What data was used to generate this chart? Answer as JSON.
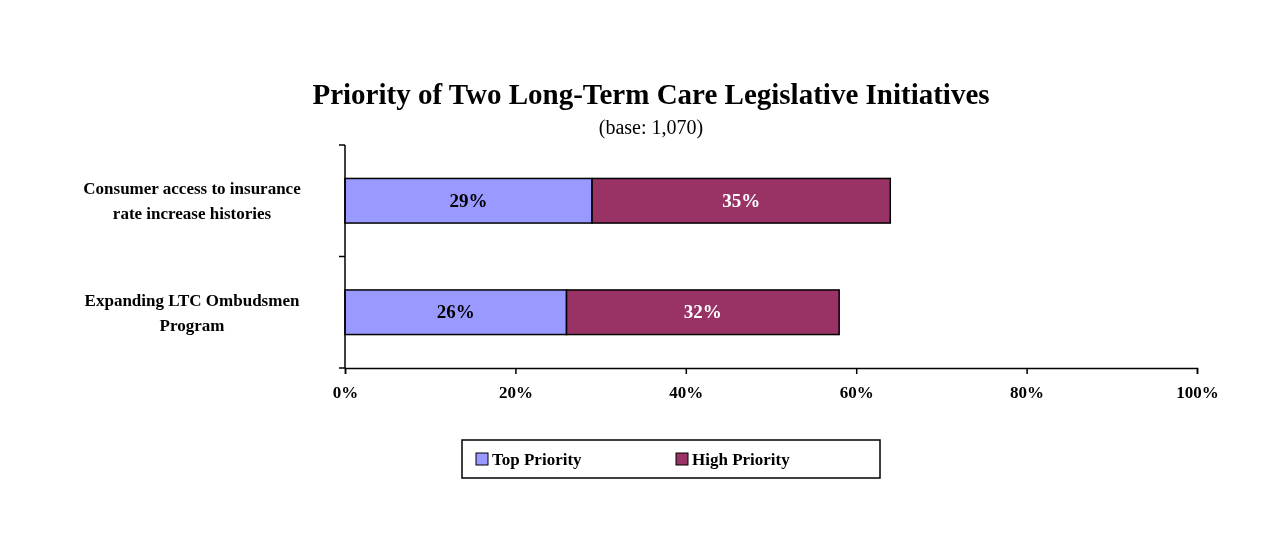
{
  "chart_data": {
    "type": "bar",
    "orientation": "horizontal",
    "stacked": true,
    "title": "Priority of Two Long-Term Care Legislative Initiatives",
    "subtitle": "(base: 1,070)",
    "categories": [
      "Consumer access to insurance rate increase histories",
      "Expanding LTC Ombudsmen Program"
    ],
    "series": [
      {
        "name": "Top Priority",
        "color": "#9999ff",
        "values": [
          29,
          26
        ],
        "value_labels": [
          "29%",
          "26%"
        ]
      },
      {
        "name": "High Priority",
        "color": "#993366",
        "values": [
          35,
          32
        ],
        "value_labels": [
          "35%",
          "32%"
        ]
      }
    ],
    "xlim": [
      0,
      100
    ],
    "xticks": [
      {
        "value": 0,
        "label": "0%"
      },
      {
        "value": 20,
        "label": "20%"
      },
      {
        "value": 40,
        "label": "40%"
      },
      {
        "value": 60,
        "label": "60%"
      },
      {
        "value": 80,
        "label": "80%"
      },
      {
        "value": 100,
        "label": "100%"
      }
    ],
    "grid": false,
    "legend": "bottom"
  }
}
